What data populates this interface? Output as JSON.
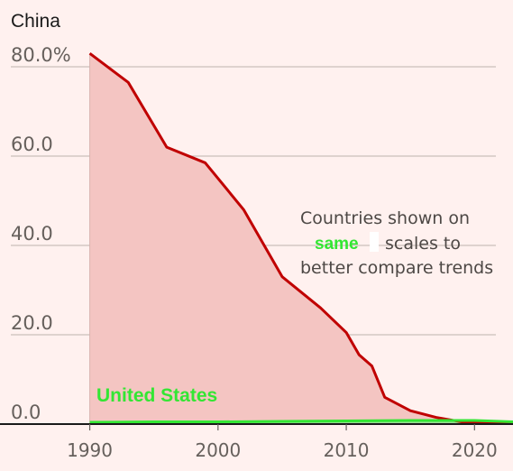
{
  "chart_data": {
    "type": "area",
    "title": "China",
    "xlabel": "",
    "ylabel": "",
    "xlim": [
      1983,
      2023
    ],
    "ylim": [
      0,
      80
    ],
    "x_ticks": [
      {
        "value": 1990,
        "label": "1990"
      },
      {
        "value": 2000,
        "label": "2000"
      },
      {
        "value": 2010,
        "label": "2010"
      },
      {
        "value": 2020,
        "label": "2020"
      }
    ],
    "y_ticks": [
      {
        "value": 80,
        "label": "80.0%"
      },
      {
        "value": 60,
        "label": "60.0"
      },
      {
        "value": 40,
        "label": "40.0"
      },
      {
        "value": 20,
        "label": "20.0"
      },
      {
        "value": 0,
        "label": "0.0"
      }
    ],
    "grid": true,
    "series": [
      {
        "name": "",
        "color": "#c00000",
        "fill": "#f4c5c2",
        "x": [
          1990,
          1993,
          1996,
          1999,
          2002,
          2005,
          2008,
          2010,
          2011,
          2012,
          2013,
          2015,
          2017,
          2019,
          2021,
          2023
        ],
        "y": [
          83.0,
          76.5,
          62.0,
          58.5,
          48.0,
          33.0,
          26.0,
          20.5,
          15.5,
          13.0,
          6.0,
          3.0,
          1.5,
          0.5,
          0.2,
          0.1
        ]
      },
      {
        "name": "United States",
        "color": "#33e633",
        "fill": "#8fe08f",
        "x": [
          1990,
          1995,
          2000,
          2005,
          2010,
          2015,
          2020,
          2023
        ],
        "y": [
          0.4,
          0.5,
          0.5,
          0.6,
          0.7,
          0.8,
          0.8,
          0.5
        ]
      }
    ],
    "annotation": {
      "lines": [
        "Countries shown on",
        "same",
        "scales to",
        "better compare trends"
      ],
      "highlight_color": "#33e633"
    }
  }
}
